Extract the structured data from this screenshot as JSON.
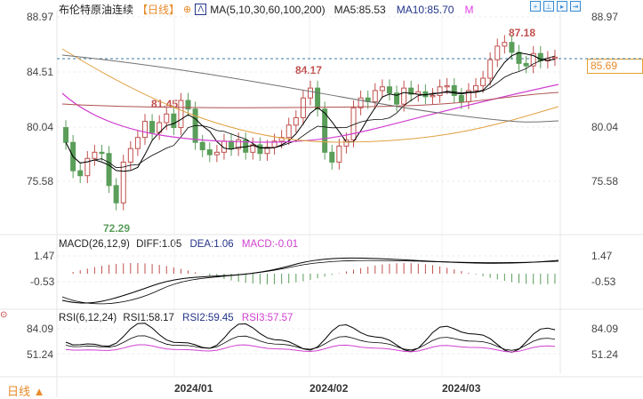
{
  "header": {
    "title": "布伦特原油连续",
    "period": "【日线】",
    "ma_label": "MA(5,10,30,60,100,200)",
    "ma5": "MA5:85.53",
    "ma10": "MA10:85.70",
    "more": "M"
  },
  "toolbar": {
    "icons": [
      "crosshair-icon",
      "zoom-range-icon",
      "step-forward-icon",
      "go-end-icon"
    ]
  },
  "price_axis": {
    "left": [
      "88.97",
      "84.51",
      "80.04",
      "75.58"
    ],
    "right": [
      "88.97",
      "80.04",
      "75.58"
    ],
    "current_price": "85.69"
  },
  "annotations": {
    "high1": "87.18",
    "high2": "84.17",
    "high3": "81.45",
    "low1": "72.29"
  },
  "macd": {
    "label": "MACD(26,12,9)",
    "diff": "DIFF:1.05",
    "dea": "DEA:1.06",
    "macd": "MACD:-0.01",
    "axis": [
      "1.47",
      "-0.53"
    ]
  },
  "rsi": {
    "label": "RSI(6,12,24)",
    "rsi1": "RSI1:58.17",
    "rsi2": "RSI2:59.45",
    "rsi3": "RSI3:57.57",
    "axis": [
      "84.09",
      "51.24"
    ]
  },
  "x_axis": [
    "2024/01",
    "2024/02",
    "2024/03"
  ],
  "bottom_tab": "日线 ▲",
  "colors": {
    "up": "#c0504d",
    "down": "#5a9e5a",
    "ma5": "#000000",
    "ma30": "#d040d0",
    "ma60": "#b05050",
    "ma100": "#e0a040",
    "ma200": "#707070",
    "dash": "#3a7aa0"
  },
  "chart_data": {
    "type": "candlestick",
    "title": "布伦特原油连续 【日线】",
    "yaxis_ticks": [
      88.97,
      84.51,
      80.04,
      75.58
    ],
    "x_ticks": [
      "2024/01",
      "2024/02",
      "2024/03"
    ],
    "annotations": {
      "max_87_18": 87.18,
      "local_84_17": 84.17,
      "local_81_45": 81.45,
      "min_72_29": 72.29
    },
    "current_price": 85.69,
    "ma_values": {
      "MA5": 85.53,
      "MA10": 85.7
    },
    "macd": {
      "DIFF": 1.05,
      "DEA": 1.06,
      "MACD": -0.01,
      "ticks": [
        1.47,
        -0.53
      ]
    },
    "rsi": {
      "RSI1": 58.17,
      "RSI2": 59.45,
      "RSI3": 57.57,
      "ticks": [
        84.09,
        51.24
      ]
    }
  }
}
